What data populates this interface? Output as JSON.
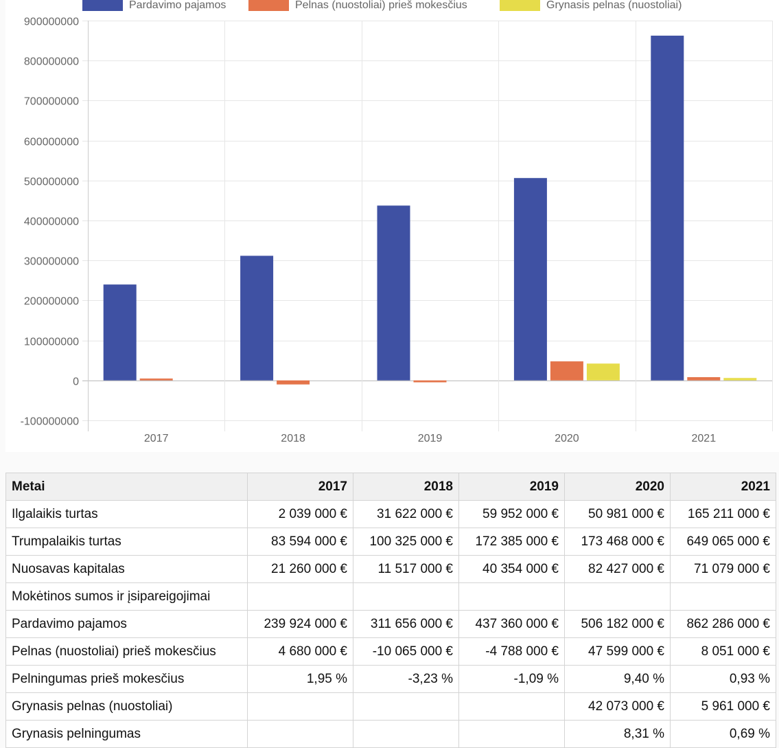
{
  "chart_data": {
    "type": "bar",
    "categories": [
      "2017",
      "2018",
      "2019",
      "2020",
      "2021"
    ],
    "series": [
      {
        "name": "Pardavimo pajamos",
        "color": "#3f51a3",
        "values": [
          239924000,
          311656000,
          437360000,
          506182000,
          862286000
        ]
      },
      {
        "name": "Pelnas (nuostoliai) prieš mokesčius",
        "color": "#e4744a",
        "values": [
          4680000,
          -10065000,
          -4788000,
          47599000,
          8051000
        ]
      },
      {
        "name": "Grynasis pelnas (nuostoliai)",
        "color": "#e6dc4a",
        "values": [
          null,
          null,
          null,
          42073000,
          5961000
        ]
      }
    ],
    "ylim": [
      -100000000,
      900000000
    ],
    "yticks": [
      "900000000",
      "800000000",
      "700000000",
      "600000000",
      "500000000",
      "400000000",
      "300000000",
      "200000000",
      "100000000",
      "0",
      "-100000000"
    ],
    "grid": true,
    "legend": "top"
  },
  "table": {
    "headers": [
      "Metai",
      "2017",
      "2018",
      "2019",
      "2020",
      "2021"
    ],
    "rows": [
      [
        "Ilgalaikis turtas",
        "2 039 000 €",
        "31 622 000 €",
        "59 952 000 €",
        "50 981 000 €",
        "165 211 000 €"
      ],
      [
        "Trumpalaikis turtas",
        "83 594 000 €",
        "100 325 000 €",
        "172 385 000 €",
        "173 468 000 €",
        "649 065 000 €"
      ],
      [
        "Nuosavas kapitalas",
        "21 260 000 €",
        "11 517 000 €",
        "40 354 000 €",
        "82 427 000 €",
        "71 079 000 €"
      ],
      [
        "Mokėtinos sumos ir įsipareigojimai",
        "",
        "",
        "",
        "",
        ""
      ],
      [
        "Pardavimo pajamos",
        "239 924 000 €",
        "311 656 000 €",
        "437 360 000 €",
        "506 182 000 €",
        "862 286 000 €"
      ],
      [
        "Pelnas (nuostoliai) prieš mokesčius",
        "4 680 000 €",
        "-10 065 000 €",
        "-4 788 000 €",
        "47 599 000 €",
        "8 051 000 €"
      ],
      [
        "Pelningumas prieš mokesčius",
        "1,95 %",
        "-3,23 %",
        "-1,09 %",
        "9,40 %",
        "0,93 %"
      ],
      [
        "Grynasis pelnas (nuostoliai)",
        "",
        "",
        "",
        "42 073 000 €",
        "5 961 000 €"
      ],
      [
        "Grynasis pelningumas",
        "",
        "",
        "",
        "8,31 %",
        "0,69 %"
      ]
    ]
  }
}
